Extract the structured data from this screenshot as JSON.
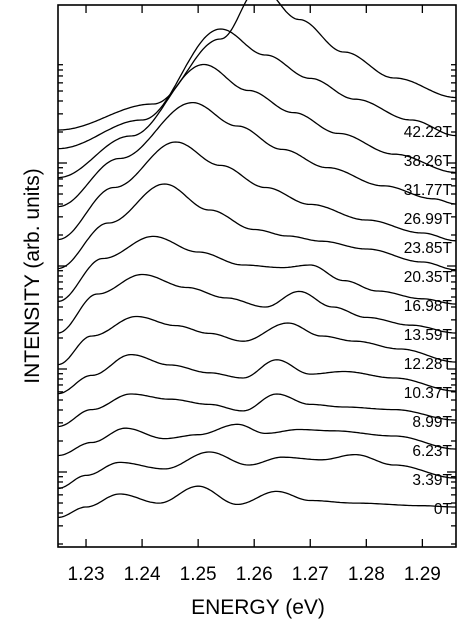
{
  "chart_data": {
    "type": "line",
    "title": "",
    "xlabel": "ENERGY (eV)",
    "ylabel": "INTENSITY (arb. units)",
    "xlim": [
      1.225,
      1.296
    ],
    "xticks": [
      1.23,
      1.24,
      1.25,
      1.26,
      1.27,
      1.28,
      1.29
    ],
    "xtick_labels": [
      "1.23",
      "1.24",
      "1.25",
      "1.26",
      "1.27",
      "1.28",
      "1.29"
    ],
    "yscale": "log",
    "y_tick_labels_shown": false,
    "grid": false,
    "legend": "none",
    "series": [
      {
        "label": "0T",
        "x": [
          1.225,
          1.23,
          1.236,
          1.243,
          1.25,
          1.257,
          1.264,
          1.27,
          1.278,
          1.29,
          1.296
        ],
        "y": [
          0.02,
          0.1,
          0.2,
          0.13,
          0.26,
          0.12,
          0.22,
          0.15,
          0.13,
          0.11,
          0.1
        ]
      },
      {
        "label": "3.39T",
        "x": [
          1.225,
          1.23,
          1.236,
          1.244,
          1.252,
          1.259,
          1.265,
          1.272,
          1.278,
          1.285,
          1.296
        ],
        "y": [
          0.02,
          0.12,
          0.22,
          0.17,
          0.3,
          0.2,
          0.26,
          0.24,
          0.28,
          0.2,
          0.1
        ]
      },
      {
        "label": "6.23T",
        "x": [
          1.225,
          1.231,
          1.237,
          1.244,
          1.25,
          1.257,
          1.262,
          1.268,
          1.274,
          1.285,
          1.296
        ],
        "y": [
          0.05,
          0.15,
          0.26,
          0.18,
          0.21,
          0.29,
          0.22,
          0.25,
          0.24,
          0.2,
          0.1
        ]
      },
      {
        "label": "8.99T",
        "x": [
          1.225,
          1.231,
          1.238,
          1.245,
          1.252,
          1.258,
          1.264,
          1.27,
          1.276,
          1.285,
          1.296
        ],
        "y": [
          0.05,
          0.18,
          0.3,
          0.26,
          0.22,
          0.17,
          0.3,
          0.22,
          0.2,
          0.18,
          0.1
        ]
      },
      {
        "label": "10.37T",
        "x": [
          1.225,
          1.231,
          1.238,
          1.245,
          1.252,
          1.258,
          1.264,
          1.27,
          1.276,
          1.285,
          1.296
        ],
        "y": [
          0.08,
          0.22,
          0.38,
          0.3,
          0.24,
          0.2,
          0.34,
          0.23,
          0.25,
          0.2,
          0.1
        ]
      },
      {
        "label": "12.28T",
        "x": [
          1.225,
          1.231,
          1.239,
          1.246,
          1.252,
          1.258,
          1.266,
          1.272,
          1.278,
          1.286,
          1.296
        ],
        "y": [
          0.08,
          0.3,
          0.45,
          0.38,
          0.32,
          0.26,
          0.4,
          0.3,
          0.26,
          0.2,
          0.1
        ]
      },
      {
        "label": "13.59T",
        "x": [
          1.225,
          1.232,
          1.24,
          1.248,
          1.255,
          1.262,
          1.268,
          1.274,
          1.28,
          1.288,
          1.296
        ],
        "y": [
          0.1,
          0.4,
          0.55,
          0.45,
          0.37,
          0.3,
          0.42,
          0.3,
          0.22,
          0.16,
          0.1
        ]
      },
      {
        "label": "16.98T",
        "x": [
          1.225,
          1.233,
          1.242,
          1.25,
          1.258,
          1.265,
          1.27,
          1.276,
          1.282,
          1.29,
          1.296
        ],
        "y": [
          0.12,
          0.45,
          0.62,
          0.5,
          0.4,
          0.38,
          0.4,
          0.28,
          0.2,
          0.14,
          0.1
        ]
      },
      {
        "label": "20.35T",
        "x": [
          1.225,
          1.234,
          1.244,
          1.252,
          1.26,
          1.266,
          1.272,
          1.28,
          1.29,
          1.296
        ],
        "y": [
          0.15,
          0.5,
          0.8,
          0.6,
          0.45,
          0.4,
          0.36,
          0.3,
          0.2,
          0.14
        ]
      },
      {
        "label": "23.85T",
        "x": [
          1.225,
          1.235,
          1.246,
          1.254,
          1.262,
          1.27,
          1.28,
          1.29,
          1.296
        ],
        "y": [
          0.15,
          0.55,
          0.9,
          0.72,
          0.55,
          0.42,
          0.3,
          0.2,
          0.14
        ]
      },
      {
        "label": "26.99T",
        "x": [
          1.225,
          1.236,
          1.249,
          1.257,
          1.265,
          1.273,
          1.283,
          1.292,
          1.296
        ],
        "y": [
          0.18,
          0.55,
          0.98,
          0.8,
          0.62,
          0.48,
          0.34,
          0.24,
          0.2
        ]
      },
      {
        "label": "31.77T",
        "x": [
          1.225,
          1.238,
          1.251,
          1.259,
          1.267,
          1.275,
          1.285,
          1.296
        ],
        "y": [
          0.18,
          0.5,
          1.05,
          0.85,
          0.68,
          0.52,
          0.36,
          0.22
        ]
      },
      {
        "label": "38.26T",
        "x": [
          1.225,
          1.24,
          1.254,
          1.262,
          1.27,
          1.278,
          1.288,
          1.296
        ],
        "y": [
          0.18,
          0.4,
          1.1,
          0.9,
          0.72,
          0.56,
          0.4,
          0.28
        ]
      },
      {
        "label": "42.22T",
        "x": [
          1.225,
          1.242,
          1.254,
          1.261,
          1.268,
          1.276,
          1.285,
          1.296
        ],
        "y": [
          0.1,
          0.3,
          0.8,
          1.2,
          0.95,
          0.7,
          0.5,
          0.35
        ]
      }
    ]
  }
}
